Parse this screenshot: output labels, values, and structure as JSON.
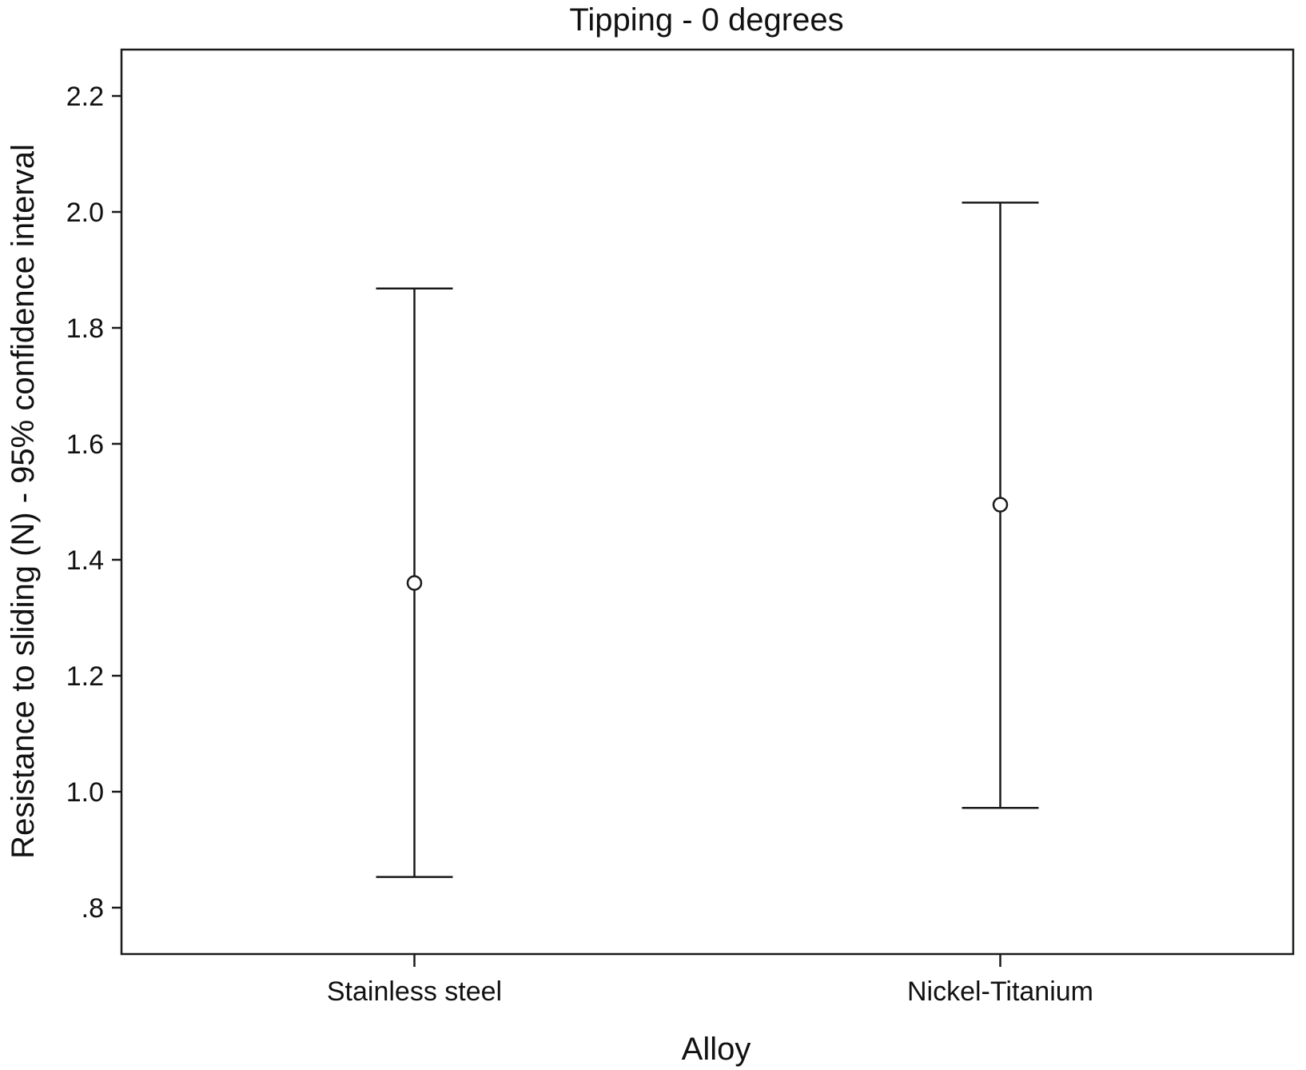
{
  "chart_data": {
    "type": "errorbar",
    "title": "Tipping - 0 degrees",
    "xlabel": "Alloy",
    "ylabel": "Resistance to sliding (N) - 95% confidence interval",
    "categories": [
      "Stainless steel",
      "Nickel-Titanium"
    ],
    "mean": [
      1.36,
      1.495
    ],
    "lower": [
      0.853,
      0.972
    ],
    "upper": [
      1.868,
      2.016
    ],
    "ylim": [
      0.72,
      2.28
    ],
    "yticks": [
      0.8,
      1.0,
      1.2,
      1.4,
      1.6,
      1.8,
      2.0,
      2.2
    ],
    "ytick_labels": [
      ".8",
      "1.0",
      "1.2",
      "1.4",
      "1.6",
      "1.8",
      "2.0",
      "2.2"
    ],
    "grid": false,
    "colors": {
      "line": "#1a1a1a",
      "background": "#ffffff"
    }
  }
}
